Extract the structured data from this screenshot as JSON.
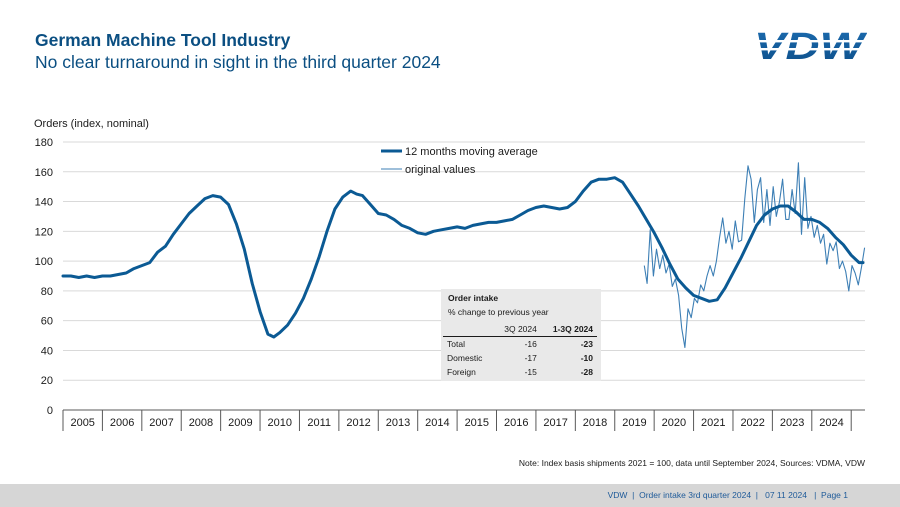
{
  "header": {
    "title": "German Machine Tool Industry",
    "subtitle": "No clear turnaround in sight in the third quarter 2024",
    "logo_text": "VDW"
  },
  "note": "Note: Index basis shipments 2021 = 100, data until September 2024, Sources: VDMA, VDW",
  "footer": {
    "org": "VDW",
    "doc": "Order intake 3rd quarter 2024",
    "date": "07 11 2024",
    "page": "Page 1"
  },
  "table": {
    "title": "Order intake",
    "subtitle": "% change to previous year",
    "columns": [
      "3Q 2024",
      "1-3Q 2024"
    ],
    "rows": [
      {
        "label": "Total",
        "q3": "-16",
        "ytd": "-23"
      },
      {
        "label": "Domestic",
        "q3": "-17",
        "ytd": "-10"
      },
      {
        "label": "Foreign",
        "q3": "-15",
        "ytd": "-28"
      }
    ]
  },
  "colors": {
    "primary": "#0b5a94",
    "secondary": "#3d7fb5",
    "title": "#0b4f82"
  },
  "chart_data": {
    "type": "line",
    "ylabel": "Orders (index, nominal)",
    "ylim": [
      0,
      180
    ],
    "yticks": [
      0,
      20,
      40,
      60,
      80,
      100,
      120,
      140,
      160,
      180
    ],
    "categories": [
      "2005",
      "2006",
      "2007",
      "2008",
      "2009",
      "2010",
      "2011",
      "2012",
      "2013",
      "2014",
      "2015",
      "2016",
      "2017",
      "2018",
      "2019",
      "2020",
      "2021",
      "2022",
      "2023",
      "2024"
    ],
    "xlim": [
      2004.5,
      2024.85
    ],
    "series": [
      {
        "name": "12 months moving average",
        "style": "thick",
        "points": [
          [
            2004.5,
            90
          ],
          [
            2004.7,
            90
          ],
          [
            2004.9,
            89
          ],
          [
            2005.1,
            90
          ],
          [
            2005.3,
            89
          ],
          [
            2005.5,
            90
          ],
          [
            2005.7,
            90
          ],
          [
            2005.9,
            91
          ],
          [
            2006.1,
            92
          ],
          [
            2006.3,
            95
          ],
          [
            2006.5,
            97
          ],
          [
            2006.7,
            99
          ],
          [
            2006.9,
            106
          ],
          [
            2007.1,
            110
          ],
          [
            2007.3,
            118
          ],
          [
            2007.5,
            125
          ],
          [
            2007.7,
            132
          ],
          [
            2007.9,
            137
          ],
          [
            2008.1,
            142
          ],
          [
            2008.3,
            144
          ],
          [
            2008.5,
            143
          ],
          [
            2008.7,
            138
          ],
          [
            2008.9,
            125
          ],
          [
            2009.1,
            108
          ],
          [
            2009.3,
            85
          ],
          [
            2009.5,
            66
          ],
          [
            2009.7,
            51
          ],
          [
            2009.85,
            49
          ],
          [
            2010.0,
            52
          ],
          [
            2010.2,
            57
          ],
          [
            2010.4,
            65
          ],
          [
            2010.6,
            75
          ],
          [
            2010.8,
            88
          ],
          [
            2011.0,
            103
          ],
          [
            2011.2,
            120
          ],
          [
            2011.4,
            135
          ],
          [
            2011.6,
            143
          ],
          [
            2011.8,
            147
          ],
          [
            2011.95,
            145
          ],
          [
            2012.1,
            144
          ],
          [
            2012.3,
            138
          ],
          [
            2012.5,
            132
          ],
          [
            2012.7,
            131
          ],
          [
            2012.9,
            128
          ],
          [
            2013.1,
            124
          ],
          [
            2013.3,
            122
          ],
          [
            2013.5,
            119
          ],
          [
            2013.7,
            118
          ],
          [
            2013.9,
            120
          ],
          [
            2014.1,
            121
          ],
          [
            2014.3,
            122
          ],
          [
            2014.5,
            123
          ],
          [
            2014.7,
            122
          ],
          [
            2014.9,
            124
          ],
          [
            2015.1,
            125
          ],
          [
            2015.3,
            126
          ],
          [
            2015.5,
            126
          ],
          [
            2015.7,
            127
          ],
          [
            2015.9,
            128
          ],
          [
            2016.1,
            131
          ],
          [
            2016.3,
            134
          ],
          [
            2016.5,
            136
          ],
          [
            2016.7,
            137
          ],
          [
            2016.9,
            136
          ],
          [
            2017.1,
            135
          ],
          [
            2017.3,
            136
          ],
          [
            2017.5,
            140
          ],
          [
            2017.7,
            147
          ],
          [
            2017.9,
            153
          ],
          [
            2018.1,
            155
          ],
          [
            2018.3,
            155
          ],
          [
            2018.5,
            156
          ],
          [
            2018.7,
            153
          ],
          [
            2018.9,
            145
          ],
          [
            2019.1,
            137
          ],
          [
            2019.3,
            128
          ],
          [
            2019.5,
            119
          ],
          [
            2019.7,
            109
          ],
          [
            2019.9,
            98
          ],
          [
            2020.1,
            88
          ],
          [
            2020.3,
            82
          ],
          [
            2020.5,
            77
          ],
          [
            2020.7,
            75
          ],
          [
            2020.9,
            73
          ],
          [
            2021.1,
            74
          ],
          [
            2021.3,
            82
          ],
          [
            2021.5,
            92
          ],
          [
            2021.7,
            102
          ],
          [
            2021.9,
            113
          ],
          [
            2022.1,
            124
          ],
          [
            2022.3,
            131
          ],
          [
            2022.5,
            135
          ],
          [
            2022.7,
            137
          ],
          [
            2022.9,
            137
          ],
          [
            2023.1,
            133
          ],
          [
            2023.3,
            128
          ],
          [
            2023.5,
            128
          ],
          [
            2023.7,
            126
          ],
          [
            2023.9,
            122
          ],
          [
            2024.1,
            116
          ],
          [
            2024.3,
            111
          ],
          [
            2024.5,
            104
          ],
          [
            2024.7,
            99
          ],
          [
            2024.8,
            99
          ]
        ]
      },
      {
        "name": "original values",
        "style": "thin",
        "points": [
          [
            2019.25,
            97
          ],
          [
            2019.32,
            85
          ],
          [
            2019.4,
            121
          ],
          [
            2019.48,
            90
          ],
          [
            2019.56,
            108
          ],
          [
            2019.64,
            95
          ],
          [
            2019.72,
            104
          ],
          [
            2019.8,
            92
          ],
          [
            2019.88,
            98
          ],
          [
            2019.96,
            83
          ],
          [
            2020.04,
            88
          ],
          [
            2020.12,
            77
          ],
          [
            2020.2,
            55
          ],
          [
            2020.28,
            42
          ],
          [
            2020.36,
            68
          ],
          [
            2020.44,
            62
          ],
          [
            2020.52,
            75
          ],
          [
            2020.6,
            72
          ],
          [
            2020.68,
            84
          ],
          [
            2020.76,
            80
          ],
          [
            2020.84,
            90
          ],
          [
            2020.92,
            97
          ],
          [
            2021.0,
            90
          ],
          [
            2021.08,
            100
          ],
          [
            2021.16,
            116
          ],
          [
            2021.24,
            129
          ],
          [
            2021.32,
            112
          ],
          [
            2021.4,
            120
          ],
          [
            2021.48,
            108
          ],
          [
            2021.56,
            127
          ],
          [
            2021.64,
            113
          ],
          [
            2021.72,
            114
          ],
          [
            2021.8,
            142
          ],
          [
            2021.88,
            164
          ],
          [
            2021.96,
            155
          ],
          [
            2022.04,
            126
          ],
          [
            2022.12,
            148
          ],
          [
            2022.2,
            156
          ],
          [
            2022.28,
            126
          ],
          [
            2022.36,
            148
          ],
          [
            2022.44,
            124
          ],
          [
            2022.52,
            150
          ],
          [
            2022.6,
            130
          ],
          [
            2022.68,
            140
          ],
          [
            2022.76,
            155
          ],
          [
            2022.84,
            128
          ],
          [
            2022.92,
            128
          ],
          [
            2023.0,
            148
          ],
          [
            2023.08,
            132
          ],
          [
            2023.16,
            166
          ],
          [
            2023.24,
            118
          ],
          [
            2023.32,
            156
          ],
          [
            2023.4,
            122
          ],
          [
            2023.48,
            130
          ],
          [
            2023.56,
            116
          ],
          [
            2023.64,
            124
          ],
          [
            2023.72,
            112
          ],
          [
            2023.8,
            118
          ],
          [
            2023.88,
            98
          ],
          [
            2023.96,
            112
          ],
          [
            2024.04,
            107
          ],
          [
            2024.12,
            113
          ],
          [
            2024.2,
            95
          ],
          [
            2024.28,
            100
          ],
          [
            2024.36,
            93
          ],
          [
            2024.44,
            80
          ],
          [
            2024.52,
            97
          ],
          [
            2024.6,
            92
          ],
          [
            2024.68,
            84
          ],
          [
            2024.76,
            96
          ],
          [
            2024.84,
            109
          ]
        ]
      }
    ]
  }
}
